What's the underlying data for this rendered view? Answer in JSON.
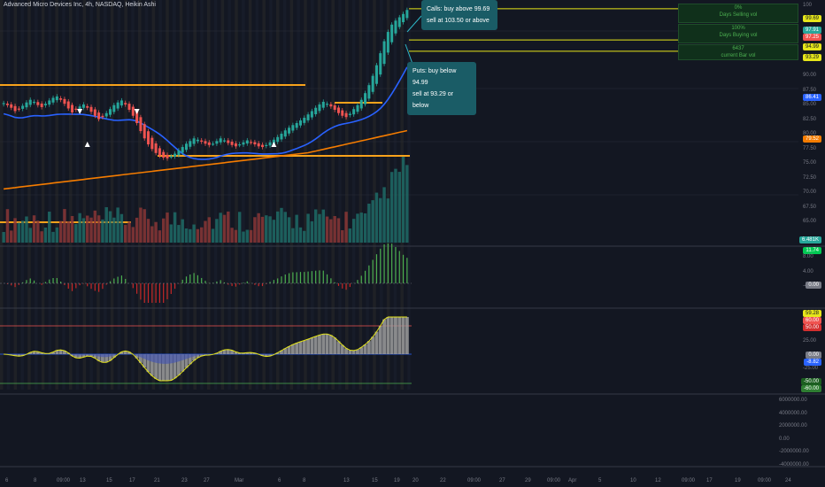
{
  "header": {
    "title": "Advanced Micro Devices Inc, 4h, NASDAQ, Heikin Ashi"
  },
  "callouts": {
    "calls_line1": "Calls: buy above 99.69",
    "calls_line2": "sell at 103.50 or above",
    "puts_line1": "Puts: buy below 94.99",
    "puts_line2": "sell at 93.29 or below"
  },
  "volume_boxes": [
    {
      "pct": "0%",
      "label": "Days Selling vol"
    },
    {
      "pct": "100%",
      "label": "Days Buying vol"
    },
    {
      "pct": "6437",
      "label": "current Bar vol"
    }
  ],
  "price_tags": {
    "top_partial": "100",
    "v9969": "99.69",
    "v9791": "97.91",
    "v9725": "97.25",
    "v9499": "94.99",
    "v9329": "93.29",
    "v8641": "86.41",
    "v7952": "79.52",
    "vol": "6.481K",
    "osc1": "11.74",
    "osc1_zero": "0.00",
    "osc2_top": "59.28",
    "osc2_a": "60.00",
    "osc2_b": "50.00",
    "osc2_zero": "0.00",
    "osc2_neg": "-8.82",
    "osc2_c": "-50.00",
    "osc2_d": "-60.00"
  },
  "price_axis": [
    "90.00",
    "87.50",
    "85.00",
    "82.50",
    "80.00",
    "77.50",
    "75.00",
    "72.50",
    "70.00",
    "67.50",
    "65.00"
  ],
  "osc1_axis": [
    "8.00",
    "4.00",
    "-4.00"
  ],
  "osc2_axis": [
    "25.00",
    "-25.00"
  ],
  "vol_axis": [
    "6000000.00",
    "4000000.00",
    "2000000.00",
    "0.00",
    "-2000000.00",
    "-4000000.00"
  ],
  "time_axis": [
    "6",
    "8",
    "09:00",
    "13",
    "15",
    "17",
    "21",
    "23",
    "27",
    "Mar",
    "6",
    "8",
    "13",
    "15",
    "19",
    "20",
    "22",
    "09:00",
    "27",
    "29",
    "09:00",
    "Apr",
    "5",
    "10",
    "12",
    "09:00",
    "17",
    "19",
    "09:00",
    "24"
  ],
  "colors": {
    "bull": "#26a69a",
    "bear": "#ef5350",
    "accent": "#f7a21b",
    "ma_blue": "#2962ff",
    "ma_orange": "#f57c00",
    "level_yellow": "#e6e61a"
  },
  "chart_data": {
    "type": "candlestick",
    "title": "Advanced Micro Devices Inc, 4h, NASDAQ, Heikin Ashi",
    "ylim": [
      64,
      101
    ],
    "levels": [
      {
        "name": "Calls: buy above",
        "value": 99.69
      },
      {
        "name": "Calls: sell at",
        "value": 103.5
      },
      {
        "name": "Puts: buy below",
        "value": 94.99
      },
      {
        "name": "Puts: sell at",
        "value": 93.29
      },
      {
        "name": "resistance",
        "value": 88.0
      },
      {
        "name": "support",
        "value": 77.0
      },
      {
        "name": "resistance2",
        "value": 85.3
      }
    ],
    "close": [
      85.5,
      85.2,
      84.8,
      84.3,
      84.6,
      85.1,
      85.6,
      86.0,
      85.7,
      85.2,
      84.9,
      85.4,
      85.9,
      86.3,
      86.5,
      86.0,
      85.4,
      84.7,
      84.1,
      84.5,
      85.0,
      85.3,
      84.8,
      84.2,
      83.6,
      83.1,
      83.4,
      84.0,
      84.6,
      85.2,
      85.6,
      85.9,
      85.3,
      84.5,
      83.6,
      82.5,
      81.3,
      80.2,
      79.3,
      78.6,
      78.0,
      77.6,
      77.3,
      77.2,
      77.5,
      77.9,
      78.4,
      78.9,
      79.4,
      79.8,
      80.2,
      80.0,
      79.7,
      79.4,
      79.2,
      79.4,
      79.8,
      80.2,
      79.9,
      79.5,
      79.2,
      79.0,
      79.3,
      79.6,
      79.9,
      79.6,
      79.3,
      79.0,
      78.9,
      79.2,
      79.6,
      80.0,
      80.4,
      80.9,
      81.4,
      81.8,
      82.2,
      82.5,
      82.9,
      83.3,
      83.8,
      84.3,
      84.8,
      85.3,
      85.7,
      85.4,
      85.0,
      84.5,
      84.0,
      83.6,
      83.4,
      83.9,
      84.6,
      85.2,
      86.0,
      87.0,
      88.2,
      89.6,
      91.2,
      93.0,
      94.8,
      96.2,
      97.3,
      97.9,
      98.4,
      98.9,
      99.5
    ]
  }
}
